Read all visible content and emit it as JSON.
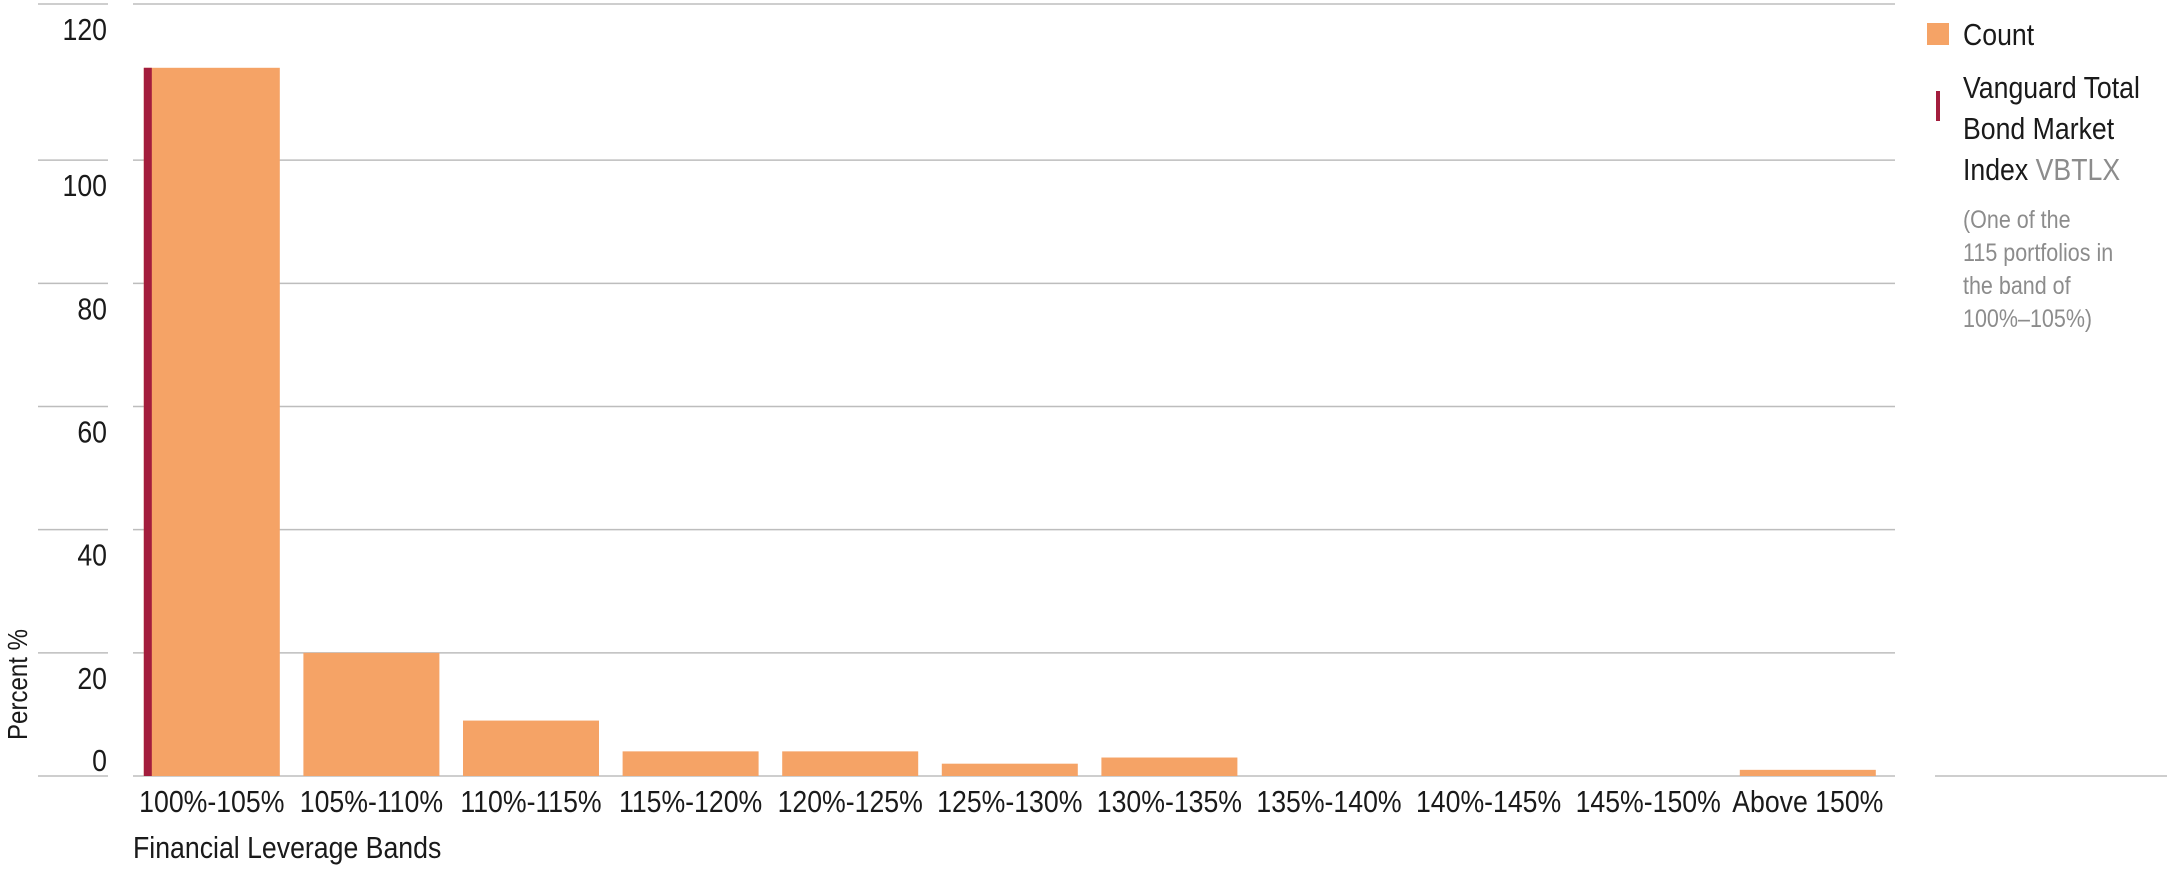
{
  "chart_data": {
    "type": "bar",
    "categories": [
      "100%-105%",
      "105%-110%",
      "110%-115%",
      "115%-120%",
      "120%-125%",
      "125%-130%",
      "130%-135%",
      "135%-140%",
      "140%-145%",
      "145%-150%",
      "Above 150%"
    ],
    "values": [
      115,
      20,
      9,
      4,
      4,
      2,
      3,
      0,
      0,
      0,
      1
    ],
    "xlabel": "Financial Leverage Bands",
    "ylabel": "Percent %",
    "ylim": [
      0,
      120
    ],
    "yticks": [
      0,
      20,
      40,
      60,
      80,
      100,
      120
    ],
    "grid": true,
    "legend_position": "right",
    "marker": {
      "category": "100%-105%",
      "position": "left-edge"
    }
  },
  "legend": {
    "count_label": "Count",
    "fund_name_lines": [
      "Vanguard Total",
      "Bond Market",
      "Index"
    ],
    "fund_ticker": "VBTLX",
    "note_lines": [
      "(One of the",
      "115 portfolios in",
      "the band of",
      "100%–105%)"
    ]
  },
  "colors": {
    "bar": "#f5a366",
    "marker": "#a31d3d",
    "grid": "#bdbdbd",
    "axis_text": "#1a1a1a",
    "muted_text": "#8c8c8c"
  }
}
